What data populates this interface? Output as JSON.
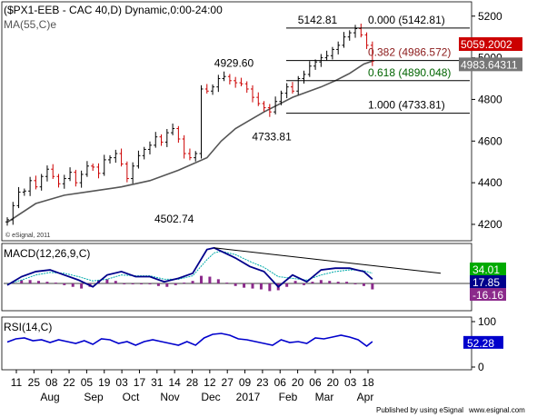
{
  "chart_data": [
    {
      "type": "line",
      "panel": "price",
      "title": "($PX1-EEB - CAC 40,D) Dynamic,0:00-24:00",
      "indicator_label": "MA(55,C)e",
      "watermark": "© eSignal, 2011",
      "ylim": [
        4130,
        5260
      ],
      "y_ticks": [
        4200,
        4400,
        4600,
        4800,
        5000,
        5200
      ],
      "x_tick_labels": [
        "11",
        "25",
        "08",
        "22",
        "05",
        "19",
        "03",
        "17",
        "31",
        "14",
        "28",
        "12",
        "27",
        "09",
        "23",
        "06",
        "20",
        "06",
        "20",
        "03",
        "18"
      ],
      "x_month_labels": [
        "Aug",
        "Sep",
        "Oct",
        "Nov",
        "Dec",
        "2017",
        "Feb",
        "Mar",
        "Apr"
      ],
      "x_range_days": [
        0,
        258
      ],
      "series": [
        {
          "kind": "candlestick",
          "color_up": "#000000",
          "color_down": "#cc0000",
          "x": [
            0,
            4,
            8,
            12,
            16,
            20,
            24,
            28,
            32,
            36,
            40,
            44,
            48,
            52,
            56,
            60,
            64,
            68,
            72,
            76,
            80,
            84,
            88,
            92,
            96,
            100,
            104,
            108,
            112,
            116,
            120,
            124,
            128,
            132,
            136,
            140,
            144,
            148,
            152,
            156,
            160,
            164,
            168,
            172,
            176,
            180,
            184,
            188,
            192,
            196,
            200,
            204,
            208,
            212,
            216,
            220,
            224,
            228,
            232,
            236,
            240,
            244,
            248,
            252,
            256
          ],
          "close": [
            4222,
            4290,
            4355,
            4360,
            4410,
            4380,
            4430,
            4465,
            4430,
            4395,
            4420,
            4450,
            4400,
            4440,
            4480,
            4475,
            4445,
            4510,
            4520,
            4540,
            4490,
            4420,
            4480,
            4530,
            4560,
            4580,
            4620,
            4595,
            4640,
            4660,
            4610,
            4540,
            4520,
            4540,
            4850,
            4840,
            4860,
            4900,
            4910,
            4890,
            4880,
            4875,
            4850,
            4810,
            4780,
            4760,
            4740,
            4790,
            4830,
            4860,
            4840,
            4900,
            4920,
            4960,
            4980,
            5000,
            5010,
            5040,
            5060,
            5100,
            5120,
            5140,
            5110,
            5060,
            4984
          ]
        },
        {
          "name": "MA(55,C)e",
          "color": "#555555",
          "x": [
            0,
            20,
            40,
            60,
            80,
            100,
            120,
            140,
            150,
            160,
            170,
            180,
            190,
            200,
            210,
            220,
            230,
            240,
            250,
            256
          ],
          "values": [
            4210,
            4300,
            4340,
            4360,
            4380,
            4410,
            4460,
            4520,
            4600,
            4660,
            4700,
            4740,
            4775,
            4810,
            4835,
            4860,
            4890,
            4925,
            4970,
            4984
          ]
        }
      ],
      "current_values": [
        {
          "label": "5059.2002",
          "color": "#cc0000"
        },
        {
          "label": "4983.64311",
          "color": "#777777"
        }
      ],
      "annotations": [
        {
          "text": "5142.81",
          "y": 5142.81
        },
        {
          "text": "4929.60",
          "y": 4929.6
        },
        {
          "text": "4733.81",
          "y": 4733.81
        },
        {
          "text": "4502.74",
          "y": 4502.74
        }
      ],
      "fibonacci": [
        {
          "label": "0.000 (5142.81)",
          "value": 5142.81,
          "color": "#000000"
        },
        {
          "label": "0.382 (4986.572)",
          "value": 4986.572,
          "color": "#8b1a1a"
        },
        {
          "label": "0.618 (4890.048)",
          "value": 4890.048,
          "color": "#006400"
        },
        {
          "label": "1.000 (4733.81)",
          "value": 4733.81,
          "color": "#000000"
        }
      ]
    },
    {
      "type": "line",
      "panel": "macd",
      "title": "MACD(12,26,9,C)",
      "ylim": [
        -30,
        45
      ],
      "series": [
        {
          "name": "MACD",
          "color": "#00008b",
          "x": [
            0,
            10,
            20,
            30,
            40,
            50,
            60,
            70,
            80,
            90,
            100,
            110,
            120,
            130,
            140,
            145,
            150,
            160,
            170,
            180,
            190,
            200,
            210,
            220,
            230,
            240,
            245,
            250,
            256
          ],
          "values": [
            -2,
            8,
            14,
            16,
            10,
            4,
            -4,
            10,
            14,
            8,
            8,
            2,
            6,
            12,
            40,
            42,
            38,
            30,
            20,
            14,
            -4,
            10,
            2,
            16,
            18,
            18,
            16,
            14,
            5
          ]
        },
        {
          "name": "Signal",
          "color": "#00aaaa",
          "x": [
            0,
            10,
            20,
            30,
            40,
            50,
            60,
            70,
            80,
            90,
            100,
            110,
            120,
            130,
            140,
            145,
            150,
            160,
            170,
            180,
            190,
            200,
            210,
            220,
            230,
            240,
            245,
            250,
            256
          ],
          "values": [
            -1,
            4,
            10,
            13,
            12,
            8,
            3,
            5,
            10,
            9,
            9,
            5,
            5,
            9,
            28,
            36,
            38,
            34,
            26,
            19,
            8,
            6,
            4,
            10,
            14,
            16,
            16,
            15,
            12
          ]
        },
        {
          "name": "Histogram",
          "kind": "bars",
          "color": "#8b2a8b",
          "x": [
            4,
            10,
            16,
            22,
            28,
            34,
            40,
            46,
            52,
            58,
            64,
            70,
            76,
            82,
            88,
            94,
            100,
            106,
            112,
            118,
            124,
            130,
            136,
            142,
            148,
            154,
            160,
            166,
            172,
            178,
            184,
            190,
            196,
            202,
            208,
            214,
            220,
            226,
            232,
            238,
            244,
            250,
            256
          ],
          "values": [
            2,
            4,
            4,
            3,
            2,
            1,
            -2,
            -4,
            -6,
            -4,
            4,
            5,
            3,
            -1,
            -1,
            0,
            -1,
            -3,
            -4,
            -2,
            1,
            3,
            9,
            8,
            5,
            1,
            -3,
            -5,
            -6,
            -7,
            -9,
            -8,
            -4,
            3,
            -2,
            2,
            4,
            3,
            2,
            2,
            -1,
            -3,
            -7
          ]
        },
        {
          "name": "Trendline",
          "kind": "trendline",
          "color": "#000000",
          "x": [
            145,
            290
          ],
          "values": [
            42,
            12
          ]
        }
      ],
      "current_values": [
        {
          "label": "34.01",
          "color": "#00aa00"
        },
        {
          "label": "17.85",
          "color": "#00008b"
        },
        {
          "label": "-16.16",
          "color": "#8b2a8b"
        }
      ]
    },
    {
      "type": "line",
      "panel": "rsi",
      "title": "RSI(14,C)",
      "ylim": [
        0,
        100
      ],
      "y_ticks": [
        0,
        50,
        100
      ],
      "series": [
        {
          "name": "RSI",
          "color": "#0000cc",
          "x": [
            0,
            6,
            12,
            18,
            24,
            30,
            36,
            42,
            48,
            54,
            60,
            66,
            72,
            78,
            84,
            90,
            96,
            102,
            108,
            114,
            120,
            126,
            132,
            138,
            144,
            150,
            156,
            162,
            168,
            174,
            180,
            186,
            192,
            198,
            204,
            210,
            216,
            222,
            228,
            234,
            240,
            246,
            252,
            256
          ],
          "values": [
            55,
            62,
            64,
            58,
            60,
            54,
            60,
            56,
            52,
            58,
            50,
            62,
            60,
            52,
            56,
            48,
            56,
            60,
            56,
            52,
            48,
            56,
            48,
            64,
            72,
            74,
            70,
            62,
            60,
            56,
            52,
            48,
            60,
            54,
            56,
            52,
            64,
            62,
            66,
            70,
            66,
            60,
            46,
            56
          ]
        }
      ],
      "current_values": [
        {
          "label": "52.28",
          "color": "#0000cc"
        }
      ]
    }
  ],
  "footer": {
    "publisher": "Published by using eSignal",
    "site": "www.esignal.com"
  }
}
